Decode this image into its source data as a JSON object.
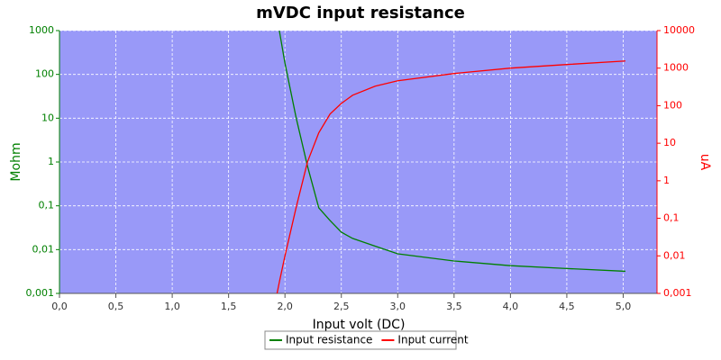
{
  "chart_data": {
    "type": "line",
    "title": "mVDC input resistance",
    "xlabel": "Input volt (DC)",
    "ylabel": "Mohm",
    "y2label": "uA",
    "x": [
      1.93,
      1.95,
      2.0,
      2.1,
      2.2,
      2.3,
      2.4,
      2.5,
      2.6,
      2.8,
      3.0,
      3.5,
      4.0,
      4.5,
      5.02
    ],
    "series": [
      {
        "name": "Input resistance",
        "color": "#008000",
        "axis": "y",
        "values": [
          null,
          1000,
          180,
          10,
          0.8,
          0.09,
          0.046,
          0.025,
          0.018,
          0.012,
          0.008,
          0.0055,
          0.0043,
          0.0037,
          0.0032
        ]
      },
      {
        "name": "Input current",
        "color": "#ff0000",
        "axis": "y2",
        "values": [
          0.001,
          0.002,
          0.01,
          0.2,
          3.2,
          19,
          60,
          115,
          190,
          330,
          460,
          720,
          1000,
          1250,
          1550
        ]
      }
    ],
    "xlim": [
      0,
      5.3
    ],
    "xticks": [
      {
        "value": 0,
        "label": "0,0"
      },
      {
        "value": 0.5,
        "label": "0,5"
      },
      {
        "value": 1,
        "label": "1,0"
      },
      {
        "value": 1.5,
        "label": "1,5"
      },
      {
        "value": 2,
        "label": "2,0"
      },
      {
        "value": 2.5,
        "label": "2,5"
      },
      {
        "value": 3,
        "label": "3,0"
      },
      {
        "value": 3.5,
        "label": "3,5"
      },
      {
        "value": 4,
        "label": "4,0"
      },
      {
        "value": 4.5,
        "label": "4,5"
      },
      {
        "value": 5,
        "label": "5,0"
      }
    ],
    "ylim": [
      0.001,
      1000
    ],
    "yscale": "log",
    "yticks": [
      {
        "value": 0.001,
        "label": "0,001"
      },
      {
        "value": 0.01,
        "label": "0,01"
      },
      {
        "value": 0.1,
        "label": "0,1"
      },
      1,
      10,
      100,
      1000
    ],
    "y2lim": [
      0.001,
      10000
    ],
    "y2scale": "log",
    "y2ticks": [
      {
        "value": 0.001,
        "label": "0,001"
      },
      {
        "value": 0.01,
        "label": "0,01"
      },
      {
        "value": 0.1,
        "label": "0,1"
      },
      1,
      10,
      100,
      1000,
      10000
    ],
    "grid": true,
    "legend": "bottom",
    "background": "#9999f8",
    "ycolor": "#008000",
    "y2color": "#ff0000"
  }
}
